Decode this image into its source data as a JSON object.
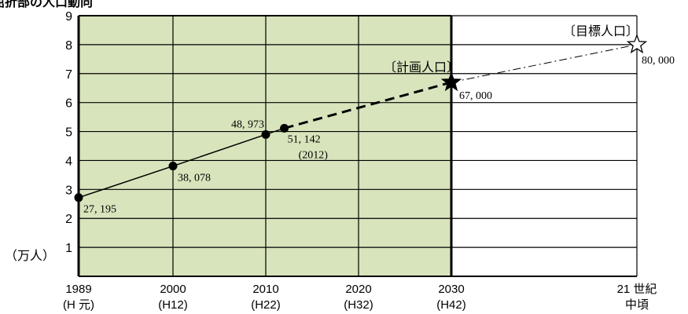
{
  "chart_data": {
    "type": "line",
    "title": "",
    "xlabel": "",
    "ylabel": "（万人）",
    "ylim": [
      0,
      9
    ],
    "y_ticks": [
      "1",
      "2",
      "3",
      "4",
      "5",
      "6",
      "7",
      "8",
      "9"
    ],
    "x_ticks": [
      {
        "year": "1989",
        "era": "(H 元)"
      },
      {
        "year": "2000",
        "era": "(H12)"
      },
      {
        "year": "2010",
        "era": "(H22)"
      },
      {
        "year": "2020",
        "era": "(H32)"
      },
      {
        "year": "2030",
        "era": "(H42)"
      },
      {
        "year": "21 世紀",
        "era": "中頃"
      }
    ],
    "shaded_region": {
      "from": 1989,
      "to": 2030,
      "color": "#d8e4bc"
    },
    "colors": {
      "line": "#000000",
      "shade": "#d8e4bc",
      "grid": "#000000"
    },
    "series": [
      {
        "style": "solid",
        "marker": "circle",
        "points": [
          {
            "x": 1989,
            "y": 2.7195,
            "label": "27, 195"
          },
          {
            "x": 2000,
            "y": 3.8078,
            "label": "38, 078"
          },
          {
            "x": 2010,
            "y": 4.8973,
            "label": "48, 973"
          },
          {
            "x": 2012,
            "y": 5.1142,
            "label": "51, 142",
            "sublabel": "(2012)"
          }
        ]
      },
      {
        "style": "dashed-bold",
        "points": [
          {
            "x": 2012,
            "y": 5.1142
          },
          {
            "x": 2030,
            "y": 6.7
          }
        ]
      },
      {
        "style": "dash-dot",
        "points": [
          {
            "x": 2030,
            "y": 6.7
          },
          {
            "x": "21 世紀中頃",
            "y": 8.0
          }
        ]
      }
    ],
    "milestones": [
      {
        "x": 2030,
        "y": 6.7,
        "label": "67, 000",
        "annotation": "〔計画人口〕",
        "marker": "filled-star"
      },
      {
        "x": "21 世紀中頃",
        "y": 8.0,
        "label": "80, 000",
        "annotation": "〔目標人口〕",
        "marker": "open-star"
      }
    ]
  },
  "header_fragment": "屈折部の人口動向"
}
